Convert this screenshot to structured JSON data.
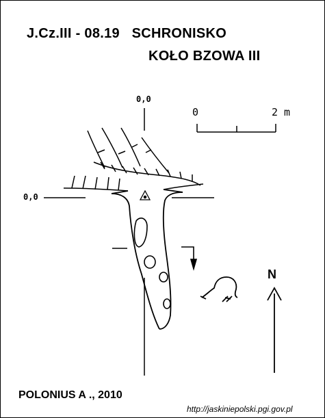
{
  "header": {
    "code": "J.Cz.III - 08.19",
    "name_line1": "SCHRONISKO",
    "name_line2": "KOŁO BZOWA III"
  },
  "coordinates": {
    "top_label": "0,0",
    "left_label": "0,0"
  },
  "scale": {
    "start_label": "0",
    "end_label": "2 m"
  },
  "north": {
    "label": "N"
  },
  "footer": {
    "author": "POLONIUS A ., 2010",
    "url": "http://jaskiniepolski.pgi.gov.pl"
  },
  "colors": {
    "ink": "#000000",
    "background": "#ffffff"
  }
}
